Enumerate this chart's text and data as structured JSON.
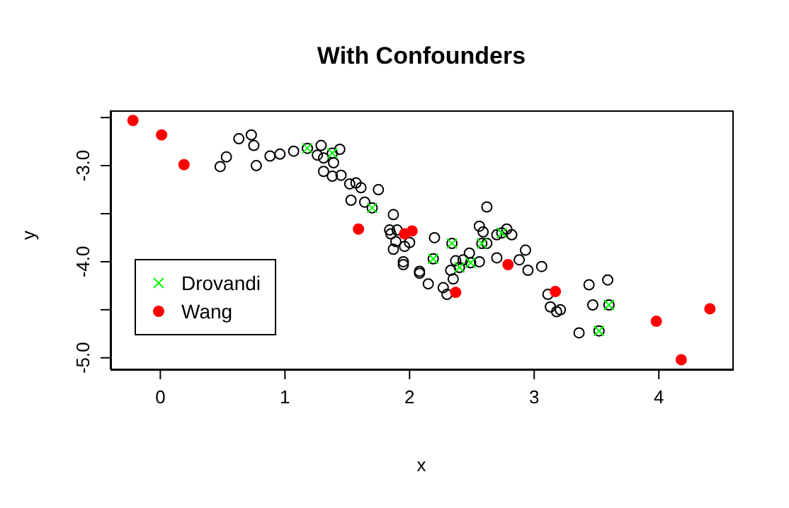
{
  "chart_data": {
    "type": "scatter",
    "title": "With Confounders",
    "xlabel": "x",
    "ylabel": "y",
    "xlim": [
      -0.4,
      4.59
    ],
    "ylim": [
      -5.12,
      -2.425
    ],
    "xticks": [
      0,
      1,
      2,
      3,
      4
    ],
    "yticks": [
      {
        "value": -2.5,
        "label": null
      },
      {
        "value": -3,
        "label": "-3.0"
      },
      {
        "value": -3.5,
        "label": null
      },
      {
        "value": -4,
        "label": "-4.0"
      },
      {
        "value": -4.5,
        "label": null
      },
      {
        "value": -5,
        "label": "-5.0"
      }
    ],
    "grid": false,
    "legend": "bottom left",
    "series": [
      {
        "color": "#000000",
        "marker": "open circle",
        "x": [
          0.48,
          0.53,
          0.63,
          0.73,
          0.75,
          0.77,
          0.88,
          0.96,
          1.07,
          1.18,
          1.29,
          1.26,
          1.31,
          1.39,
          1.38,
          1.44,
          1.31,
          1.38,
          1.45,
          1.52,
          1.57,
          1.61,
          1.75,
          1.53,
          1.64,
          1.7,
          1.87,
          1.84,
          1.9,
          1.85,
          1.89,
          1.87,
          1.96,
          2.0,
          1.95,
          1.95,
          2.08,
          2.08,
          2.2,
          2.19,
          2.15,
          2.27,
          2.3,
          2.33,
          2.35,
          2.37,
          2.34,
          2.4,
          2.43,
          2.48,
          2.49,
          2.56,
          2.56,
          2.59,
          2.58,
          2.62,
          2.62,
          2.7,
          2.7,
          2.74,
          2.78,
          2.82,
          2.88,
          2.93,
          2.95,
          3.06,
          3.11,
          3.13,
          3.18,
          3.21,
          3.44,
          3.59,
          3.47,
          3.36,
          3.6,
          3.52
        ],
        "values": [
          -3.01,
          -2.91,
          -2.72,
          -2.68,
          -2.79,
          -3.0,
          -2.9,
          -2.88,
          -2.85,
          -2.82,
          -2.79,
          -2.89,
          -2.92,
          -2.97,
          -2.87,
          -2.83,
          -3.06,
          -3.11,
          -3.1,
          -3.19,
          -3.18,
          -3.23,
          -3.25,
          -3.36,
          -3.38,
          -3.44,
          -3.51,
          -3.67,
          -3.67,
          -3.71,
          -3.79,
          -3.87,
          -3.84,
          -3.8,
          -4.0,
          -4.03,
          -4.1,
          -4.12,
          -3.75,
          -3.97,
          -4.23,
          -4.27,
          -4.34,
          -4.09,
          -4.18,
          -3.99,
          -3.81,
          -4.06,
          -3.98,
          -3.91,
          -4.01,
          -4.0,
          -3.63,
          -3.69,
          -3.81,
          -3.43,
          -3.81,
          -3.72,
          -3.96,
          -3.7,
          -3.66,
          -3.72,
          -3.98,
          -3.88,
          -4.09,
          -4.05,
          -4.34,
          -4.47,
          -4.52,
          -4.5,
          -4.24,
          -4.19,
          -4.45,
          -4.74,
          -4.45,
          -4.72
        ]
      },
      {
        "name": "Drovandi",
        "color": "#00ff00",
        "marker": "cross",
        "x": [
          1.18,
          1.38,
          1.7,
          2.34,
          2.19,
          2.4,
          2.49,
          2.58,
          2.74,
          3.6,
          3.52
        ],
        "values": [
          -2.82,
          -2.87,
          -3.44,
          -3.81,
          -3.97,
          -4.06,
          -4.01,
          -3.81,
          -3.7,
          -4.45,
          -4.72
        ]
      },
      {
        "name": "Wang",
        "color": "#ff0000",
        "marker": "circle",
        "x": [
          -0.22,
          0.01,
          0.19,
          1.59,
          1.96,
          2.02,
          2.37,
          2.79,
          3.17,
          3.98,
          4.18,
          4.41
        ],
        "values": [
          -2.53,
          -2.68,
          -2.99,
          -3.66,
          -3.71,
          -3.68,
          -4.32,
          -4.03,
          -4.31,
          -4.62,
          -5.02,
          -4.49
        ]
      }
    ]
  }
}
